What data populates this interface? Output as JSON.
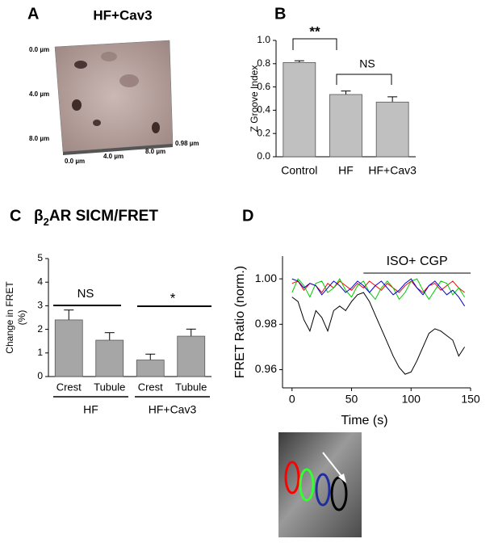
{
  "panel_a": {
    "letter": "A",
    "title": "HF+Cav3",
    "y_labels": [
      "0.0 µm",
      "4.0 µm",
      "8.0 µm"
    ],
    "x_labels": [
      "0.0 µm",
      "4.0 µm",
      "8.0 µm"
    ],
    "z_label": "0.98 µm"
  },
  "chart_data": [
    {
      "letter": "B",
      "type": "bar",
      "categories": [
        "Control",
        "HF",
        "HF+Cav3"
      ],
      "values": [
        0.81,
        0.535,
        0.47
      ],
      "errors": [
        0.015,
        0.03,
        0.045
      ],
      "color": "#c0c0c0",
      "ylabel": "Z Groove Index",
      "ylim": [
        0,
        1.0
      ],
      "yticks": [
        {
          "value": 0,
          "label": "0.0"
        },
        0.2,
        0.4,
        0.6,
        0.8,
        {
          "value": 1,
          "label": "1.0"
        }
      ],
      "annotations": [
        "**",
        "NS"
      ]
    },
    {
      "letter": "C",
      "type": "bar",
      "title_parts": [
        "β",
        "2",
        "AR SICM/FRET"
      ],
      "categories": [
        "Crest",
        "Tubule",
        "Crest",
        "Tubule"
      ],
      "groups": [
        "HF",
        "HF+Cav3"
      ],
      "values": [
        2.4,
        1.54,
        0.7,
        1.71
      ],
      "errors": [
        0.42,
        0.32,
        0.25,
        0.3
      ],
      "color": "#a6a6a6",
      "ylabel": [
        "Change in FRET",
        "(%)"
      ],
      "ylim": [
        0,
        5
      ],
      "yticks": [
        0,
        1,
        2,
        3,
        4,
        5
      ],
      "annotations": [
        "NS",
        "*"
      ]
    },
    {
      "letter": "D",
      "type": "line",
      "x": [
        0,
        5,
        10,
        15,
        20,
        25,
        30,
        35,
        40,
        45,
        50,
        55,
        60,
        65,
        70,
        75,
        80,
        85,
        90,
        95,
        100,
        105,
        110,
        115,
        120,
        125,
        130,
        135,
        140,
        145
      ],
      "series": [
        {
          "color": "#000000",
          "values": [
            0.992,
            0.99,
            0.982,
            0.977,
            0.986,
            0.983,
            0.977,
            0.986,
            0.988,
            0.986,
            0.99,
            0.993,
            0.994,
            0.99,
            0.984,
            0.978,
            0.972,
            0.966,
            0.961,
            0.958,
            0.959,
            0.964,
            0.97,
            0.976,
            0.978,
            0.977,
            0.975,
            0.973,
            0.966,
            0.97
          ]
        },
        {
          "color": "#ff0000",
          "values": [
            0.998,
            0.999,
            0.995,
            0.998,
            0.997,
            0.994,
            0.998,
            0.996,
            0.999,
            0.997,
            0.995,
            0.998,
            0.996,
            0.999,
            0.997,
            0.995,
            0.998,
            0.996,
            0.994,
            0.997,
            0.999,
            0.996,
            0.994,
            0.997,
            0.998,
            0.995,
            0.997,
            0.999,
            0.996,
            0.994
          ]
        },
        {
          "color": "#00cc00",
          "values": [
            0.994,
            1.0,
            0.997,
            0.992,
            0.998,
            0.999,
            0.994,
            0.996,
            1.0,
            0.995,
            0.992,
            0.997,
            0.999,
            0.994,
            0.991,
            0.996,
            0.999,
            0.996,
            0.991,
            0.994,
            0.999,
            1.0,
            0.995,
            0.991,
            0.995,
            0.999,
            0.998,
            0.993,
            0.996,
            0.992
          ]
        },
        {
          "color": "#0000cc",
          "values": [
            1.0,
            0.999,
            0.996,
            0.998,
            0.997,
            0.993,
            0.996,
            0.999,
            0.997,
            0.994,
            0.996,
            0.999,
            0.997,
            0.994,
            0.997,
            0.999,
            0.996,
            0.993,
            0.995,
            0.998,
            1.0,
            0.996,
            0.993,
            0.997,
            0.999,
            0.996,
            0.993,
            0.995,
            0.992,
            0.988
          ]
        }
      ],
      "xlim": [
        -8,
        150
      ],
      "ylim": [
        0.952,
        1.01
      ],
      "xticks": [
        0,
        50,
        100,
        150
      ],
      "yticks": [
        0.96,
        0.98,
        {
          "value": 1,
          "label": "1.00"
        }
      ],
      "xlabel": "Time (s)",
      "ylabel": "FRET Ratio (norm.)",
      "annotation": {
        "text": "ISO+ CGP",
        "start": 60,
        "end": 150
      }
    }
  ]
}
